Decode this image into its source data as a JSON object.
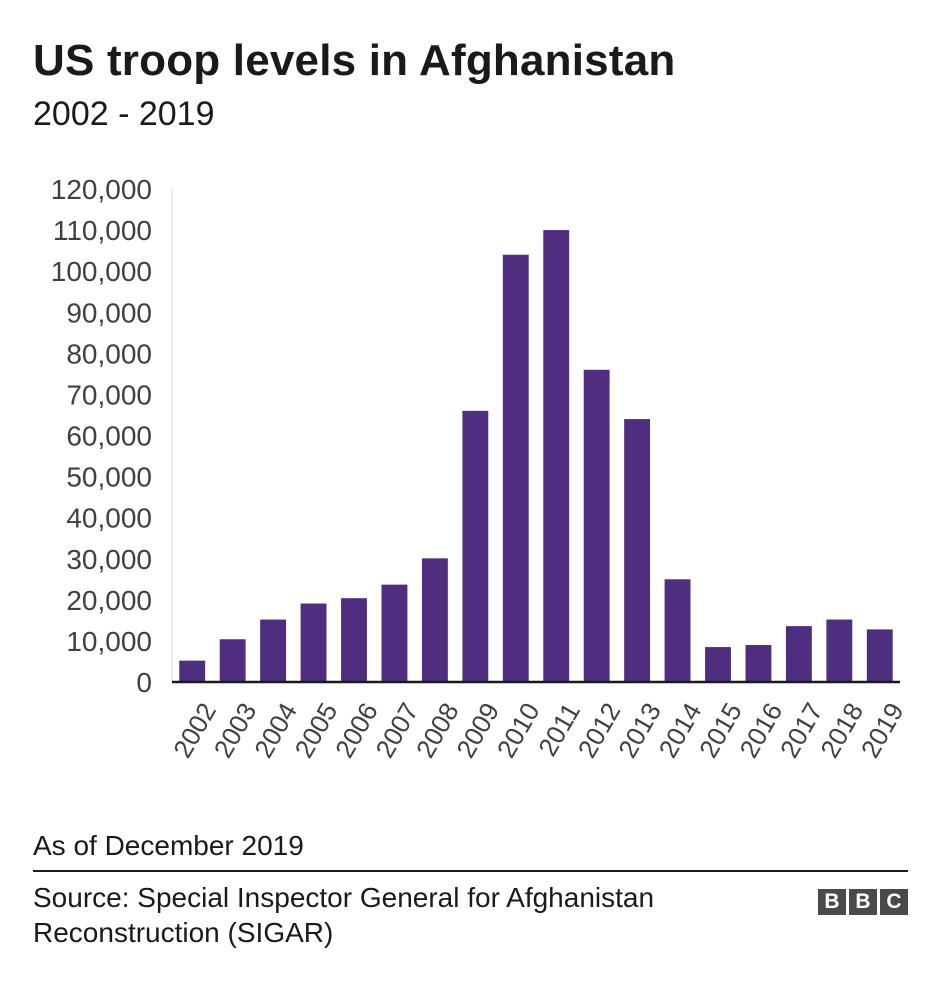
{
  "header": {
    "title": "US troop levels in Afghanistan",
    "subtitle": "2002 - 2019"
  },
  "chart_data": {
    "type": "bar",
    "title": "US troop levels in Afghanistan",
    "subtitle": "2002 - 2019",
    "xlabel": "",
    "ylabel": "",
    "categories": [
      "2002",
      "2003",
      "2004",
      "2005",
      "2006",
      "2007",
      "2008",
      "2009",
      "2010",
      "2011",
      "2012",
      "2013",
      "2014",
      "2015",
      "2016",
      "2017",
      "2018",
      "2019"
    ],
    "values": [
      5200,
      10400,
      15200,
      19100,
      20400,
      23700,
      30100,
      66000,
      104000,
      110000,
      76000,
      64000,
      25000,
      8500,
      9000,
      13600,
      15200,
      12800
    ],
    "ylim": [
      0,
      120000
    ],
    "yticks": [
      0,
      10000,
      20000,
      30000,
      40000,
      50000,
      60000,
      70000,
      80000,
      90000,
      100000,
      110000,
      120000
    ],
    "ytick_labels": [
      "0",
      "10,000",
      "20,000",
      "30,000",
      "40,000",
      "50,000",
      "60,000",
      "70,000",
      "80,000",
      "90,000",
      "100,000",
      "110,000",
      "120,000"
    ],
    "grid": false,
    "bar_color": "#4f2d7f"
  },
  "footer": {
    "note": "As of December 2019",
    "source": "Source: Special Inspector General for Afghanistan Reconstruction (SIGAR)",
    "logo_letters": [
      "B",
      "B",
      "C"
    ],
    "logo_color": "#4a4a4a"
  }
}
